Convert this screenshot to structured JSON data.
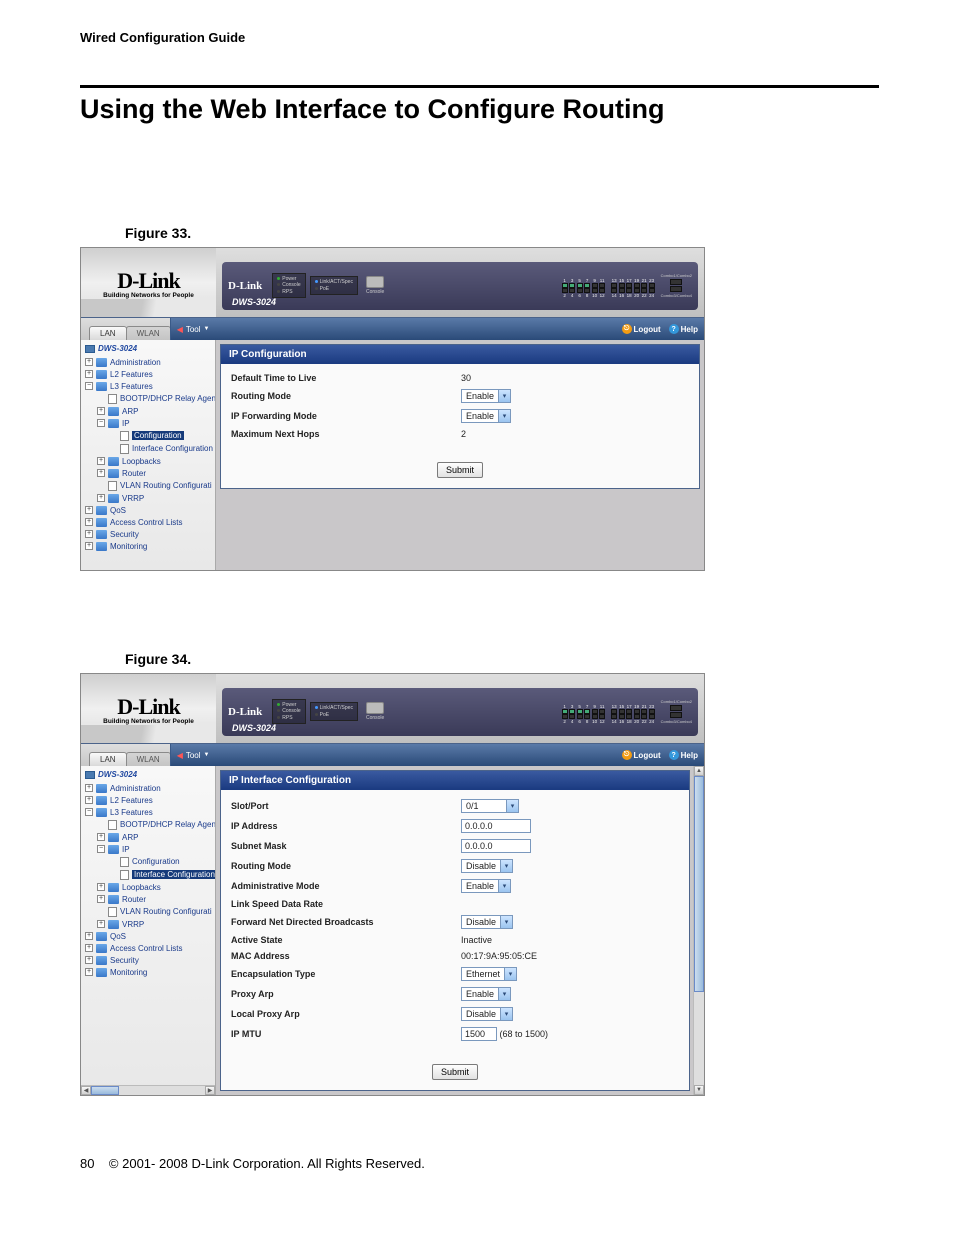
{
  "doc": {
    "running_head": "Wired Configuration Guide",
    "title": "Using the Web Interface to Configure Routing",
    "footer_page": "80",
    "footer_text": "© 2001- 2008 D-Link Corporation. All Rights Reserved."
  },
  "fig33": {
    "caption": "Figure 33.",
    "logo_primary": "D-Link",
    "logo_secondary": "Building Networks for People",
    "device_brand": "D-Link",
    "device_model": "DWS-3024",
    "leds": {
      "power": "Power",
      "console": "Console",
      "rps": "RPS",
      "linkact": "Link/ACT/Spec",
      "poe": "PoE"
    },
    "port_top": [
      "1",
      "3",
      "5",
      "7",
      "9",
      "11",
      "13",
      "15",
      "17",
      "19",
      "21",
      "23"
    ],
    "port_bottom": [
      "2",
      "4",
      "6",
      "8",
      "10",
      "12",
      "14",
      "16",
      "18",
      "20",
      "22",
      "24"
    ],
    "combo1": "Combo1/Combo2",
    "combo2": "Combo3/Combo4",
    "console_lbl": "Console",
    "tabs": {
      "lan": "LAN",
      "wlan": "WLAN"
    },
    "toolbar": {
      "tool": "Tool",
      "logout": "Logout",
      "help": "Help"
    },
    "tree": {
      "root": "DWS-3024",
      "items": [
        {
          "pm": "+",
          "icon": "fld",
          "ind": 1,
          "label": "Administration"
        },
        {
          "pm": "+",
          "icon": "fld",
          "ind": 1,
          "label": "L2 Features"
        },
        {
          "pm": "−",
          "icon": "fld",
          "ind": 1,
          "label": "L3 Features"
        },
        {
          "pm": "",
          "icon": "doc",
          "ind": 2,
          "label": "BOOTP/DHCP Relay Agen",
          "noexp": true
        },
        {
          "pm": "+",
          "icon": "fld",
          "ind": 2,
          "label": "ARP"
        },
        {
          "pm": "−",
          "icon": "fld",
          "ind": 2,
          "label": "IP"
        },
        {
          "pm": "",
          "icon": "doc",
          "ind": 3,
          "label": "Configuration",
          "sel": true,
          "noexp": true
        },
        {
          "pm": "",
          "icon": "doc",
          "ind": 3,
          "label": "Interface Configuration",
          "noexp": true
        },
        {
          "pm": "+",
          "icon": "fld",
          "ind": 2,
          "label": "Loopbacks"
        },
        {
          "pm": "+",
          "icon": "fld",
          "ind": 2,
          "label": "Router"
        },
        {
          "pm": "",
          "icon": "doc",
          "ind": 2,
          "label": "VLAN Routing Configurati",
          "noexp": true
        },
        {
          "pm": "+",
          "icon": "fld",
          "ind": 2,
          "label": "VRRP"
        },
        {
          "pm": "+",
          "icon": "fld",
          "ind": 1,
          "label": "QoS"
        },
        {
          "pm": "+",
          "icon": "fld",
          "ind": 1,
          "label": "Access Control Lists"
        },
        {
          "pm": "+",
          "icon": "fld",
          "ind": 1,
          "label": "Security"
        },
        {
          "pm": "+",
          "icon": "fld",
          "ind": 1,
          "label": "Monitoring"
        }
      ]
    },
    "panel": {
      "title": "IP Configuration",
      "rows": [
        {
          "label": "Default Time to Live",
          "type": "text",
          "value": "30"
        },
        {
          "label": "Routing Mode",
          "type": "select",
          "value": "Enable"
        },
        {
          "label": "IP Forwarding Mode",
          "type": "select",
          "value": "Enable"
        },
        {
          "label": "Maximum Next Hops",
          "type": "text",
          "value": "2"
        }
      ],
      "submit": "Submit"
    }
  },
  "fig34": {
    "caption": "Figure 34.",
    "tree": {
      "root": "DWS-3024",
      "items": [
        {
          "pm": "+",
          "icon": "fld",
          "ind": 1,
          "label": "Administration"
        },
        {
          "pm": "+",
          "icon": "fld",
          "ind": 1,
          "label": "L2 Features"
        },
        {
          "pm": "−",
          "icon": "fld",
          "ind": 1,
          "label": "L3 Features"
        },
        {
          "pm": "",
          "icon": "doc",
          "ind": 2,
          "label": "BOOTP/DHCP Relay Agen",
          "noexp": true
        },
        {
          "pm": "+",
          "icon": "fld",
          "ind": 2,
          "label": "ARP"
        },
        {
          "pm": "−",
          "icon": "fld",
          "ind": 2,
          "label": "IP"
        },
        {
          "pm": "",
          "icon": "doc",
          "ind": 3,
          "label": "Configuration",
          "noexp": true
        },
        {
          "pm": "",
          "icon": "doc",
          "ind": 3,
          "label": "Interface Configuration",
          "sel": true,
          "noexp": true
        },
        {
          "pm": "+",
          "icon": "fld",
          "ind": 2,
          "label": "Loopbacks"
        },
        {
          "pm": "+",
          "icon": "fld",
          "ind": 2,
          "label": "Router"
        },
        {
          "pm": "",
          "icon": "doc",
          "ind": 2,
          "label": "VLAN Routing Configurati",
          "noexp": true
        },
        {
          "pm": "+",
          "icon": "fld",
          "ind": 2,
          "label": "VRRP"
        },
        {
          "pm": "+",
          "icon": "fld",
          "ind": 1,
          "label": "QoS"
        },
        {
          "pm": "+",
          "icon": "fld",
          "ind": 1,
          "label": "Access Control Lists"
        },
        {
          "pm": "+",
          "icon": "fld",
          "ind": 1,
          "label": "Security"
        },
        {
          "pm": "+",
          "icon": "fld",
          "ind": 1,
          "label": "Monitoring"
        }
      ]
    },
    "panel": {
      "title": "IP Interface Configuration",
      "rows": [
        {
          "label": "Slot/Port",
          "type": "select",
          "value": "0/1",
          "wide": true
        },
        {
          "label": "IP Address",
          "type": "input",
          "value": "0.0.0.0",
          "wide": true
        },
        {
          "label": "Subnet Mask",
          "type": "input",
          "value": "0.0.0.0",
          "wide": true
        },
        {
          "label": "Routing Mode",
          "type": "select",
          "value": "Disable"
        },
        {
          "label": "Administrative Mode",
          "type": "select",
          "value": "Enable"
        },
        {
          "label": "Link Speed Data Rate",
          "type": "text",
          "value": ""
        },
        {
          "label": "Forward Net Directed Broadcasts",
          "type": "select",
          "value": "Disable"
        },
        {
          "label": "Active State",
          "type": "text",
          "value": "Inactive"
        },
        {
          "label": "MAC Address",
          "type": "text",
          "value": "00:17:9A:95:05:CE"
        },
        {
          "label": "Encapsulation Type",
          "type": "select",
          "value": "Ethernet"
        },
        {
          "label": "Proxy Arp",
          "type": "select",
          "value": "Enable"
        },
        {
          "label": "Local Proxy Arp",
          "type": "select",
          "value": "Disable"
        },
        {
          "label": "IP MTU",
          "type": "input-hint",
          "value": "1500",
          "hint": "(68 to 1500)"
        }
      ],
      "submit": "Submit"
    }
  }
}
